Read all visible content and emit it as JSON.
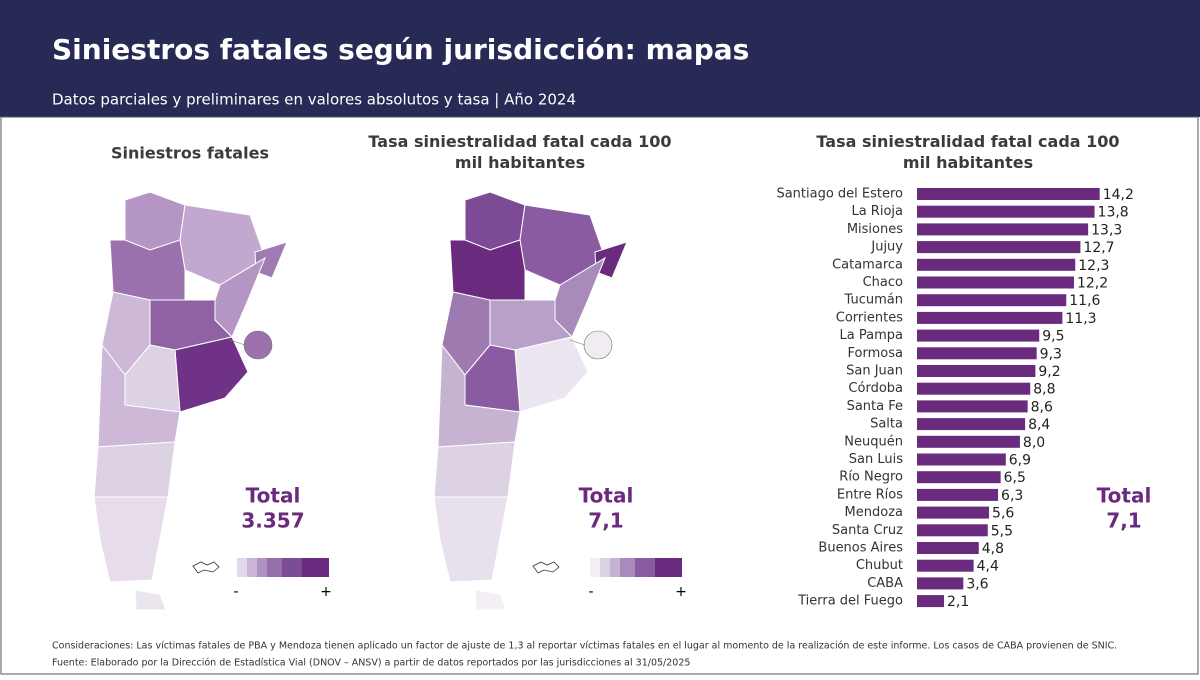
{
  "header": {
    "title": "Siniestros fatales según jurisdicción: mapas",
    "subtitle": "Datos parciales y preliminares en valores absolutos y tasa | Año 2024"
  },
  "panels": [
    {
      "title": "Siniestros fatales",
      "total_label": "Total",
      "total": "3.357",
      "legend_low": "-",
      "legend_high": "+"
    },
    {
      "title": "Tasa siniestralidad fatal cada 100 mil habitantes",
      "total_label": "Total",
      "total": "7,1",
      "legend_low": "-",
      "legend_high": "+"
    },
    {
      "total_label": "Total",
      "total": "7,1"
    }
  ],
  "chart_data": {
    "type": "bar",
    "orientation": "horizontal",
    "title": "Tasa siniestralidad fatal cada 100 mil habitantes",
    "categories": [
      "Santiago del Estero",
      "La Rioja",
      "Misiones",
      "Jujuy",
      "Catamarca",
      "Chaco",
      "Tucumán",
      "Corrientes",
      "La Pampa",
      "Formosa",
      "San Juan",
      "Córdoba",
      "Santa Fe",
      "Salta",
      "Neuquén",
      "San Luis",
      "Río Negro",
      "Entre Ríos",
      "Mendoza",
      "Santa Cruz",
      "Buenos Aires",
      "Chubut",
      "CABA",
      "Tierra del Fuego"
    ],
    "values": [
      14.2,
      13.8,
      13.3,
      12.7,
      12.3,
      12.2,
      11.6,
      11.3,
      9.5,
      9.3,
      9.2,
      8.8,
      8.6,
      8.4,
      8.0,
      6.9,
      6.5,
      6.3,
      5.6,
      5.5,
      4.8,
      4.4,
      3.6,
      2.1
    ],
    "value_labels": [
      "14,2",
      "13,8",
      "13,3",
      "12,7",
      "12,3",
      "12,2",
      "11,6",
      "11,3",
      "9,5",
      "9,3",
      "9,2",
      "8,8",
      "8,6",
      "8,4",
      "8,0",
      "6,9",
      "6,5",
      "6,3",
      "5,6",
      "5,5",
      "4,8",
      "4,4",
      "3,6",
      "2,1"
    ],
    "color": "#6a2a7e",
    "xlim": [
      0,
      15
    ]
  },
  "footer": {
    "note": "Consideraciones: Las víctimas fatales de PBA y Mendoza tienen aplicado un factor de ajuste de 1,3 al reportar víctimas fatales en el lugar al momento de la realización de este informe. Los casos de CABA provienen de SNIC.",
    "source": "Fuente: Elaborado por la Dirección de Estadística Vial (DNOV – ANSV) a partir de datos reportados por las jurisdicciones al 31/05/2025"
  }
}
